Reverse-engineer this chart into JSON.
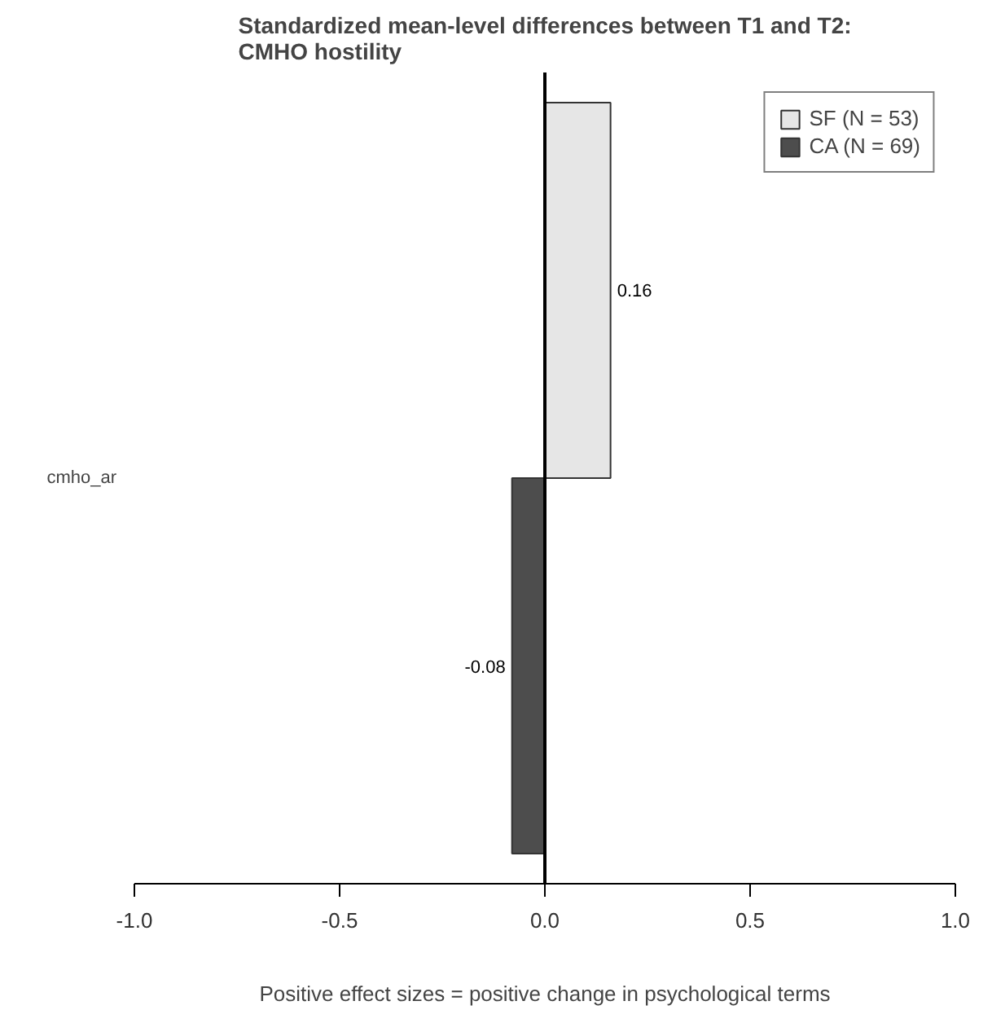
{
  "chart_data": {
    "type": "bar",
    "orientation": "horizontal",
    "title": "Standardized mean-level differences between T1 and T2:\nCMHO hostility",
    "xlabel": "Positive effect sizes = positive change in psychological terms",
    "categories": [
      "cmho_ar"
    ],
    "series": [
      {
        "name": "SF (N = 53)",
        "color": "#e6e6e6",
        "values": [
          0.16
        ]
      },
      {
        "name": "CA (N = 69)",
        "color": "#4d4d4d",
        "values": [
          -0.08
        ]
      }
    ],
    "xlim": [
      -1.0,
      1.0
    ],
    "xticks": [
      {
        "value": -1.0,
        "label": "-1.0"
      },
      {
        "value": -0.5,
        "label": "-0.5"
      },
      {
        "value": 0.0,
        "label": "0.0"
      },
      {
        "value": 0.5,
        "label": "0.5"
      },
      {
        "value": 1.0,
        "label": "1.0"
      }
    ],
    "ref_lines": [
      {
        "axis": "x",
        "value": 0,
        "color": "#000000"
      }
    ],
    "data_labels": true,
    "grid": false,
    "legend": "top right"
  }
}
